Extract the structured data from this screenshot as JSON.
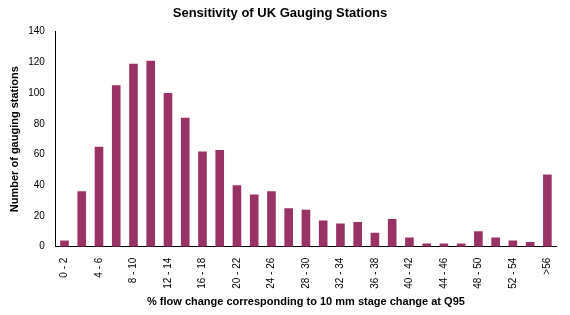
{
  "chart_data": {
    "type": "bar",
    "title": "Sensitivity of UK Gauging Stations",
    "xlabel": "% flow change corresponding to 10 mm stage change at Q95",
    "ylabel": "Number of gauging stations",
    "categories": [
      "0 - 2",
      null,
      "4 - 6",
      null,
      "8 - 10",
      null,
      "12 - 14",
      null,
      "16 - 18",
      null,
      "20 - 22",
      null,
      "24 - 26",
      null,
      "28 - 30",
      null,
      "32 - 34",
      null,
      "36 - 38",
      null,
      "40 - 42",
      null,
      "44 - 46",
      null,
      "48 - 50",
      null,
      "52 - 54",
      null,
      ">56"
    ],
    "values": [
      4,
      36,
      65,
      105,
      119,
      121,
      100,
      84,
      62,
      63,
      40,
      34,
      36,
      25,
      24,
      17,
      15,
      16,
      9,
      18,
      6,
      2,
      2,
      2,
      10,
      6,
      4,
      3,
      47
    ],
    "color": "#993366",
    "ylim": [
      0,
      140
    ],
    "yticks": [
      0,
      20,
      40,
      60,
      80,
      100,
      120,
      140
    ],
    "grid": false
  }
}
